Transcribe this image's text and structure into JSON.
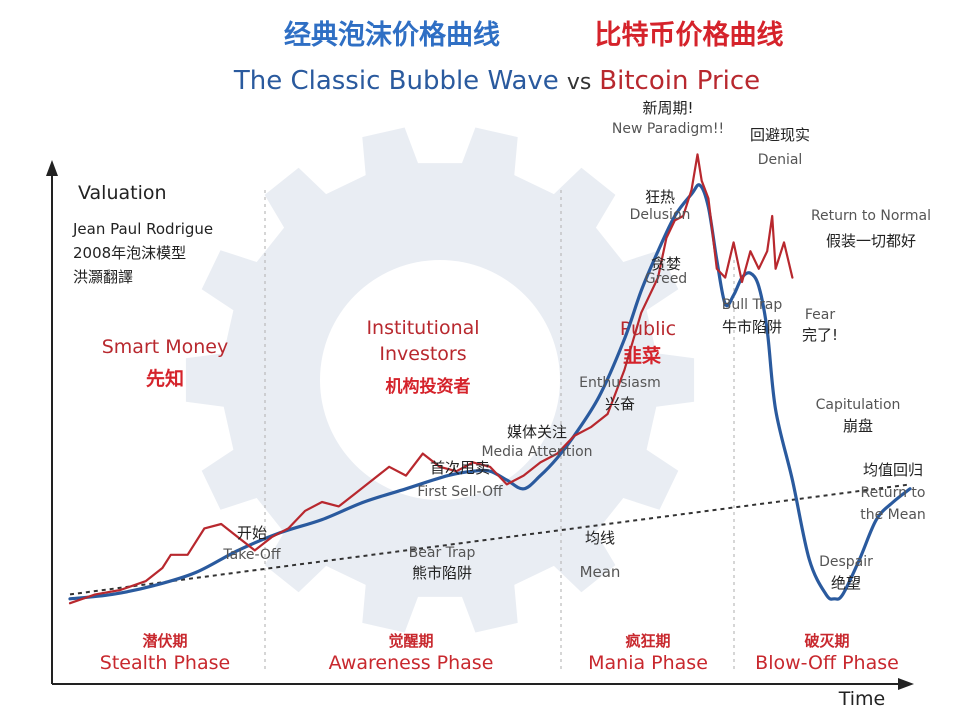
{
  "title": {
    "cn_left": "经典泡沫价格曲线",
    "cn_right": "比特币价格曲线",
    "en_part1": "The Classic Bubble Wave",
    "en_vs": "vs",
    "en_part2": "Bitcoin Price"
  },
  "credit": {
    "yaxis_label": "Valuation",
    "author": "Jean Paul Rodrigue",
    "model": "2008年泡沫模型",
    "translator": "洪灝翻譯"
  },
  "colors": {
    "classic": "#2a5a9e",
    "bitcoin": "#b8282e",
    "title_blue": "#2f6fc4",
    "title_red": "#d5232b",
    "phase_red": "#c8282e",
    "text_dark": "#222222",
    "text_gray": "#666666",
    "gear": "#e9edf3",
    "divider": "#bbbbbb"
  },
  "chart_data": {
    "type": "line",
    "title": "The Classic Bubble Wave vs Bitcoin Price",
    "xlabel": "Time",
    "ylabel": "Valuation",
    "xlim": [
      0,
      100
    ],
    "ylim": [
      0,
      100
    ],
    "grid": false,
    "series": [
      {
        "name": "经典泡沫价格曲线 The Classic Bubble Wave",
        "x": [
          0,
          5,
          10,
          15,
          20,
          25,
          30,
          35,
          40,
          45,
          48,
          50,
          52,
          54,
          56,
          58,
          60,
          63,
          66,
          68,
          70,
          72,
          74,
          75,
          76,
          77,
          78,
          79,
          80,
          81,
          82,
          83,
          84,
          86,
          88,
          90,
          91,
          92,
          94,
          96,
          98,
          100
        ],
        "values": [
          3,
          4,
          6,
          9,
          14,
          18,
          21,
          25,
          28,
          31,
          32,
          32,
          30,
          28,
          31,
          35,
          40,
          49,
          62,
          73,
          82,
          90,
          95,
          97,
          92,
          80,
          70,
          72,
          76,
          77,
          74,
          64,
          46,
          30,
          12,
          4,
          3,
          4,
          12,
          21,
          25,
          28
        ]
      },
      {
        "name": "比特币价格曲线 Bitcoin Price",
        "x": [
          0,
          3,
          6,
          9,
          11,
          12,
          14,
          16,
          18,
          20,
          22,
          24,
          26,
          28,
          30,
          32,
          34,
          36,
          38,
          40,
          42,
          44,
          46,
          48,
          50,
          52,
          54,
          56,
          58,
          60,
          62,
          64,
          66,
          68,
          70,
          71,
          72,
          73,
          74,
          74.7,
          75.2,
          76,
          77,
          78,
          79,
          80,
          81,
          82,
          83,
          83.6,
          84,
          85,
          86
        ],
        "values": [
          2,
          4,
          5,
          7,
          10,
          13,
          13,
          19,
          20,
          17,
          14,
          17,
          19,
          23,
          25,
          24,
          27,
          30,
          33,
          31,
          36,
          33,
          32,
          34,
          33,
          29,
          31,
          34,
          36,
          40,
          42,
          45,
          55,
          68,
          76,
          85,
          89,
          90,
          96,
          104,
          98,
          94,
          78,
          76,
          84,
          75,
          82,
          78,
          82,
          90,
          78,
          84,
          76
        ]
      },
      {
        "name": "均线 Mean",
        "x": [
          0,
          100
        ],
        "values": [
          4,
          29
        ]
      }
    ],
    "phases": [
      {
        "cn": "潜伏期",
        "en": "Stealth Phase",
        "label_cn": "先知",
        "label_en": "Smart Money"
      },
      {
        "cn": "觉醒期",
        "en": "Awareness Phase",
        "label_cn": "机构投资者",
        "label_en": "Institutional Investors"
      },
      {
        "cn": "疯狂期",
        "en": "Mania Phase",
        "label_cn": "韭菜",
        "label_en": "Public"
      },
      {
        "cn": "破灭期",
        "en": "Blow-Off Phase",
        "label_cn": "",
        "label_en": ""
      }
    ],
    "annotations": [
      {
        "cn": "开始",
        "en": "Take-Off"
      },
      {
        "cn": "熊市陷阱",
        "en": "Bear Trap"
      },
      {
        "cn": "首次甩卖",
        "en": "First Sell-Off"
      },
      {
        "cn": "媒体关注",
        "en": "Media Attention"
      },
      {
        "cn": "兴奋",
        "en": "Enthusiasm"
      },
      {
        "cn": "贪婪",
        "en": "Greed"
      },
      {
        "cn": "狂热",
        "en": "Delusion"
      },
      {
        "cn": "新周期!",
        "en": "New Paradigm!!"
      },
      {
        "cn": "回避现实",
        "en": "Denial"
      },
      {
        "cn": "假装一切都好",
        "en": "Return to Normal"
      },
      {
        "cn": "牛市陷阱",
        "en": "Bull Trap"
      },
      {
        "cn": "完了!",
        "en": "Fear"
      },
      {
        "cn": "崩盘",
        "en": "Capitulation"
      },
      {
        "cn": "绝望",
        "en": "Despair"
      },
      {
        "cn": "均值回归",
        "en": "Return to the Mean"
      },
      {
        "cn": "均线",
        "en": "Mean"
      }
    ]
  }
}
